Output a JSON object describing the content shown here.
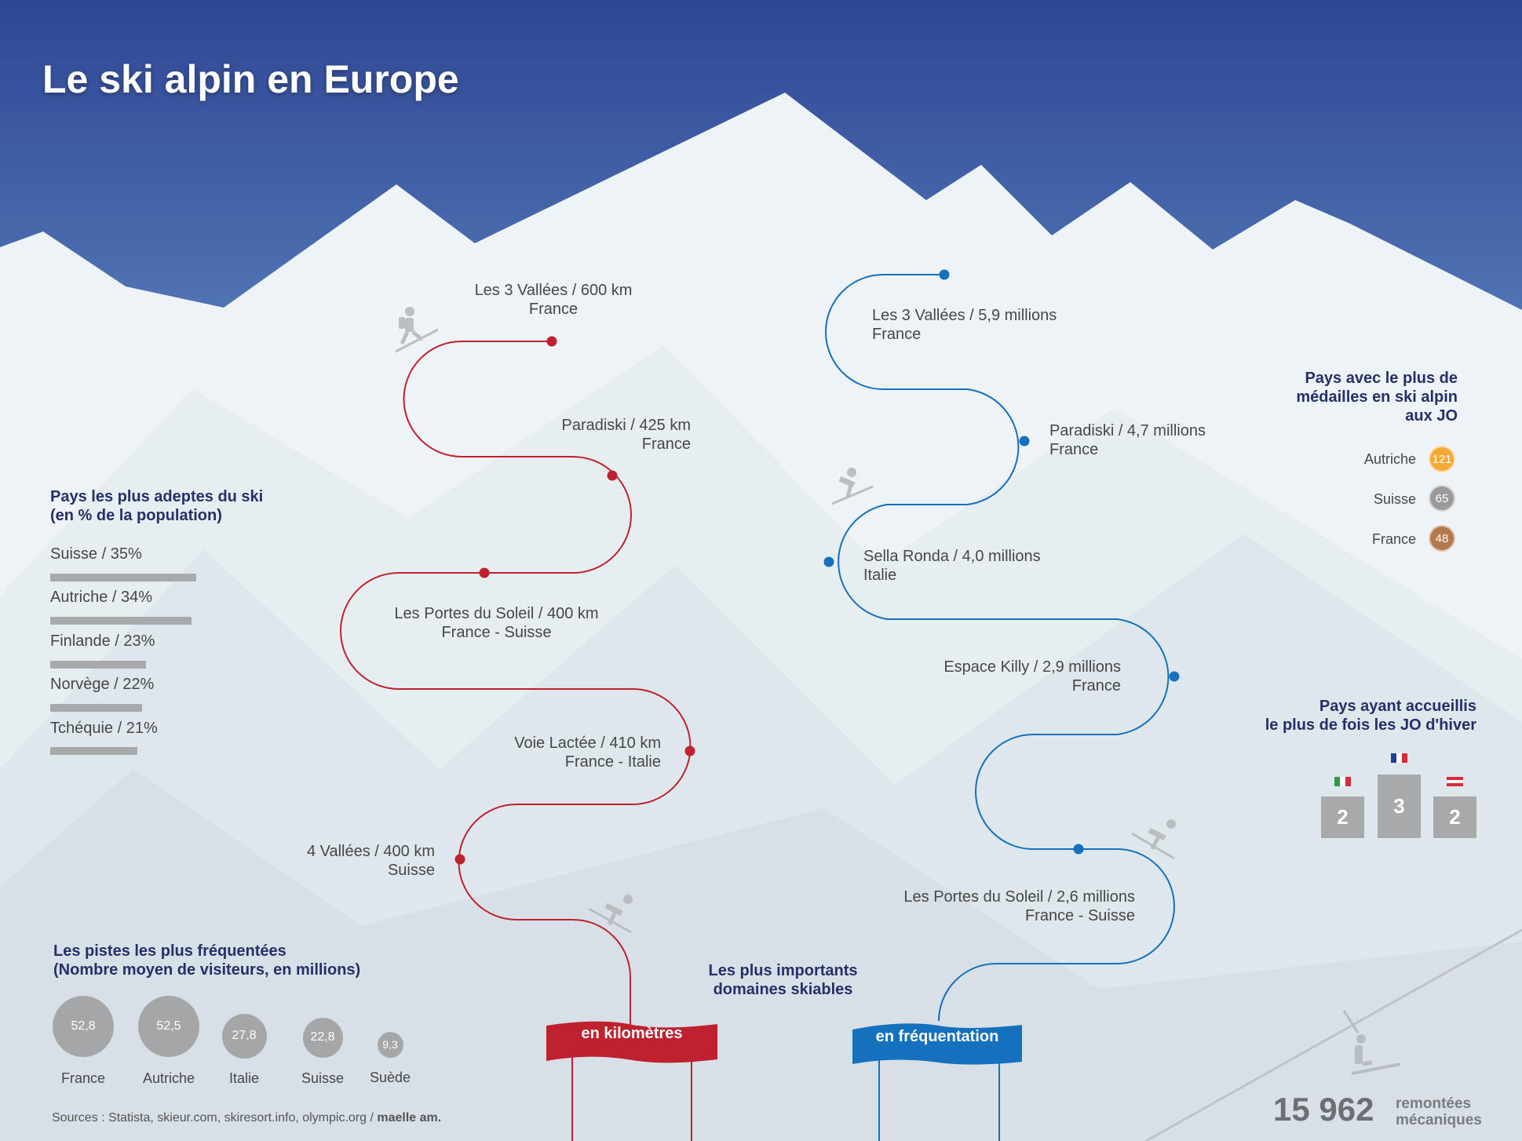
{
  "title": "Le ski alpin en Europe",
  "colors": {
    "sky": "#3d5ca3",
    "snow": "#edf3f6",
    "km_route": "#c0212f",
    "visits_route": "#1570bd",
    "gold": "#f6a935",
    "silver": "#9a9a9b",
    "bronze": "#b27a4a",
    "heading": "#25306b"
  },
  "domaines": {
    "heading_line1": "Les plus importants",
    "heading_line2": "domaines skiables",
    "km": {
      "banner": "en kilomètres",
      "items": [
        {
          "line1": "Les 3 Vallées / 600 km",
          "line2": "France"
        },
        {
          "line1": "Paradiski / 425 km",
          "line2": "France"
        },
        {
          "line1": "Les Portes du Soleil / 400 km",
          "line2": "France - Suisse"
        },
        {
          "line1": "Voie Lactée / 410 km",
          "line2": "France - Italie"
        },
        {
          "line1": "4 Vallées / 400 km",
          "line2": "Suisse"
        }
      ]
    },
    "visits": {
      "banner": "en fréquentation",
      "items": [
        {
          "line1": "Les 3 Vallées / 5,9 millions",
          "line2": "France"
        },
        {
          "line1": "Paradiski / 4,7 millions",
          "line2": "France"
        },
        {
          "line1": "Sella Ronda / 4,0 millions",
          "line2": "Italie"
        },
        {
          "line1": "Espace Killy / 2,9 millions",
          "line2": "France"
        },
        {
          "line1": "Les Portes du Soleil / 2,6 millions",
          "line2": "France - Suisse"
        }
      ]
    }
  },
  "adeptes": {
    "heading_line1": "Pays les plus adeptes du ski",
    "heading_line2": "(en % de la population)",
    "items": [
      {
        "label": "Suisse / 35%",
        "value": 35
      },
      {
        "label": "Autriche / 34%",
        "value": 34
      },
      {
        "label": "Finlande / 23%",
        "value": 23
      },
      {
        "label": "Norvège / 22%",
        "value": 22
      },
      {
        "label": "Tchéquie / 21%",
        "value": 21
      }
    ]
  },
  "pistes": {
    "heading_line1": "Les pistes les plus fréquentées",
    "heading_line2": "(Nombre moyen de visiteurs, en millions)",
    "items": [
      {
        "country": "France",
        "value": "52,8",
        "num": 52.8
      },
      {
        "country": "Autriche",
        "value": "52,5",
        "num": 52.5
      },
      {
        "country": "Italie",
        "value": "27,8",
        "num": 27.8
      },
      {
        "country": "Suisse",
        "value": "22,8",
        "num": 22.8
      },
      {
        "country": "Suède",
        "value": "9,3",
        "num": 9.3
      }
    ]
  },
  "medailles": {
    "heading_line1": "Pays avec le plus de",
    "heading_line2": "médailles en ski alpin",
    "heading_line3": "aux JO",
    "items": [
      {
        "country": "Autriche",
        "value": "121",
        "color": "#f6a935"
      },
      {
        "country": "Suisse",
        "value": "65",
        "color": "#9a9a9b"
      },
      {
        "country": "France",
        "value": "48",
        "color": "#b27a4a"
      }
    ]
  },
  "jo": {
    "heading_line1": "Pays ayant accueillis",
    "heading_line2": "le plus de fois les JO d'hiver",
    "podium": [
      {
        "country_flag": "italy-flag",
        "value": "2"
      },
      {
        "country_flag": "france-flag",
        "value": "3"
      },
      {
        "country_flag": "austria-flag",
        "value": "2"
      }
    ]
  },
  "remontees": {
    "value": "15 962",
    "line1": "remontées",
    "line2": "mécaniques"
  },
  "footer": {
    "sources": "Sources : Statista, skieur.com, skiresort.info, olympic.org / ",
    "author": "maelle am."
  }
}
